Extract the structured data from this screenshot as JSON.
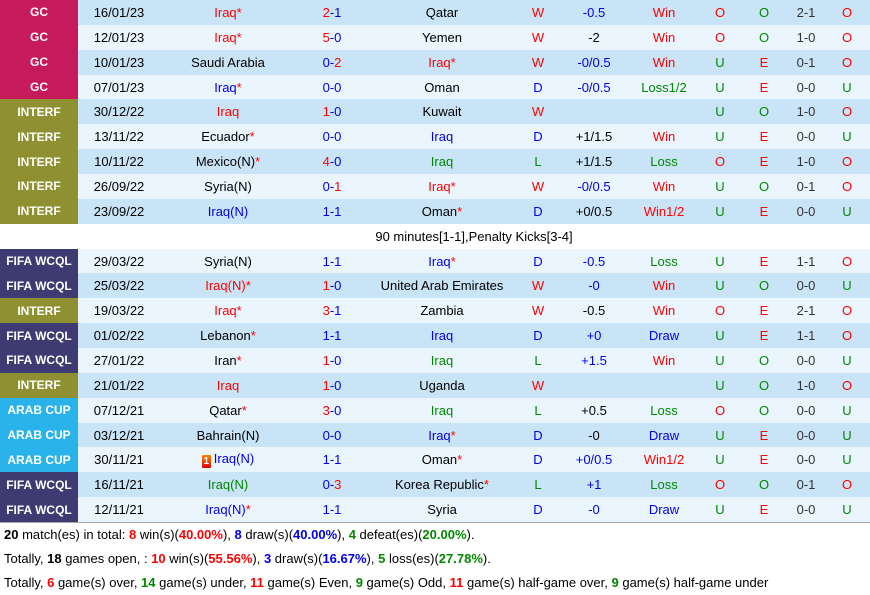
{
  "colors": {
    "red": "#ff0000",
    "blue": "#0000ee",
    "green": "#008800",
    "black": "#000000",
    "gray": "#333333"
  },
  "row_colors": {
    "dark": "#c9e4f6",
    "light": "#eaf5fd",
    "white": "#ffffff"
  },
  "badge_colors": {
    "GC": "#c51a5b",
    "INTERF": "#8f9031",
    "FIFA WCQL": "#3e3a72",
    "ARAB CUP": "#2ab3ea"
  },
  "glyphs": {
    "dash": "-",
    "star": "*",
    "red_card": "1"
  },
  "rows": [
    {
      "league": "GC",
      "date": "16/01/23",
      "home": {
        "name": "Iraq",
        "color": "red",
        "star": true
      },
      "score": {
        "h": "2",
        "hc": "red",
        "a": "1",
        "ac": "blue"
      },
      "away": {
        "name": "Qatar",
        "color": "black"
      },
      "wdl": {
        "t": "W",
        "c": "red"
      },
      "hcp": {
        "t": "-0.5",
        "c": "blue"
      },
      "bet": {
        "t": "Win",
        "c": "red"
      },
      "ou": {
        "t": "O",
        "c": "red"
      },
      "oe": {
        "t": "O",
        "c": "green"
      },
      "ht": "2-1",
      "htou": {
        "t": "O",
        "c": "red"
      },
      "shade": "dark"
    },
    {
      "league": "GC",
      "date": "12/01/23",
      "home": {
        "name": "Iraq",
        "color": "red",
        "star": true
      },
      "score": {
        "h": "5",
        "hc": "red",
        "a": "0",
        "ac": "blue"
      },
      "away": {
        "name": "Yemen",
        "color": "black"
      },
      "wdl": {
        "t": "W",
        "c": "red"
      },
      "hcp": {
        "t": "-2",
        "c": "black"
      },
      "bet": {
        "t": "Win",
        "c": "red"
      },
      "ou": {
        "t": "O",
        "c": "red"
      },
      "oe": {
        "t": "O",
        "c": "green"
      },
      "ht": "1-0",
      "htou": {
        "t": "O",
        "c": "red"
      },
      "shade": "light"
    },
    {
      "league": "GC",
      "date": "10/01/23",
      "home": {
        "name": "Saudi Arabia",
        "color": "black"
      },
      "score": {
        "h": "0",
        "hc": "blue",
        "a": "2",
        "ac": "red"
      },
      "away": {
        "name": "Iraq",
        "color": "red",
        "star": true
      },
      "wdl": {
        "t": "W",
        "c": "red"
      },
      "hcp": {
        "t": "-0/0.5",
        "c": "blue"
      },
      "bet": {
        "t": "Win",
        "c": "red"
      },
      "ou": {
        "t": "U",
        "c": "green"
      },
      "oe": {
        "t": "E",
        "c": "red"
      },
      "ht": "0-1",
      "htou": {
        "t": "O",
        "c": "red"
      },
      "shade": "dark"
    },
    {
      "league": "GC",
      "date": "07/01/23",
      "home": {
        "name": "Iraq",
        "color": "blue",
        "star": true
      },
      "score": {
        "h": "0",
        "hc": "blue",
        "a": "0",
        "ac": "blue"
      },
      "away": {
        "name": "Oman",
        "color": "black"
      },
      "wdl": {
        "t": "D",
        "c": "blue"
      },
      "hcp": {
        "t": "-0/0.5",
        "c": "blue"
      },
      "bet": {
        "t": "Loss1/2",
        "c": "green"
      },
      "ou": {
        "t": "U",
        "c": "green"
      },
      "oe": {
        "t": "E",
        "c": "red"
      },
      "ht": "0-0",
      "htou": {
        "t": "U",
        "c": "green"
      },
      "shade": "light"
    },
    {
      "league": "INTERF",
      "date": "30/12/22",
      "home": {
        "name": "Iraq",
        "color": "red"
      },
      "score": {
        "h": "1",
        "hc": "red",
        "a": "0",
        "ac": "blue"
      },
      "away": {
        "name": "Kuwait",
        "color": "black"
      },
      "wdl": {
        "t": "W",
        "c": "red"
      },
      "hcp": {
        "t": "",
        "c": "black"
      },
      "bet": {
        "t": "",
        "c": "black"
      },
      "ou": {
        "t": "U",
        "c": "green"
      },
      "oe": {
        "t": "O",
        "c": "green"
      },
      "ht": "1-0",
      "htou": {
        "t": "O",
        "c": "red"
      },
      "shade": "dark"
    },
    {
      "league": "INTERF",
      "date": "13/11/22",
      "home": {
        "name": "Ecuador",
        "color": "black",
        "star": true
      },
      "score": {
        "h": "0",
        "hc": "blue",
        "a": "0",
        "ac": "blue"
      },
      "away": {
        "name": "Iraq",
        "color": "blue"
      },
      "wdl": {
        "t": "D",
        "c": "blue"
      },
      "hcp": {
        "t": "+1/1.5",
        "c": "black"
      },
      "bet": {
        "t": "Win",
        "c": "red"
      },
      "ou": {
        "t": "U",
        "c": "green"
      },
      "oe": {
        "t": "E",
        "c": "red"
      },
      "ht": "0-0",
      "htou": {
        "t": "U",
        "c": "green"
      },
      "shade": "light"
    },
    {
      "league": "INTERF",
      "date": "10/11/22",
      "home": {
        "name": "Mexico(N)",
        "color": "black",
        "star": true
      },
      "score": {
        "h": "4",
        "hc": "red",
        "a": "0",
        "ac": "blue"
      },
      "away": {
        "name": "Iraq",
        "color": "green"
      },
      "wdl": {
        "t": "L",
        "c": "green"
      },
      "hcp": {
        "t": "+1/1.5",
        "c": "black"
      },
      "bet": {
        "t": "Loss",
        "c": "green"
      },
      "ou": {
        "t": "O",
        "c": "red"
      },
      "oe": {
        "t": "E",
        "c": "red"
      },
      "ht": "1-0",
      "htou": {
        "t": "O",
        "c": "red"
      },
      "shade": "dark"
    },
    {
      "league": "INTERF",
      "date": "26/09/22",
      "home": {
        "name": "Syria(N)",
        "color": "black"
      },
      "score": {
        "h": "0",
        "hc": "blue",
        "a": "1",
        "ac": "red"
      },
      "away": {
        "name": "Iraq",
        "color": "red",
        "star": true
      },
      "wdl": {
        "t": "W",
        "c": "red"
      },
      "hcp": {
        "t": "-0/0.5",
        "c": "blue"
      },
      "bet": {
        "t": "Win",
        "c": "red"
      },
      "ou": {
        "t": "U",
        "c": "green"
      },
      "oe": {
        "t": "O",
        "c": "green"
      },
      "ht": "0-1",
      "htou": {
        "t": "O",
        "c": "red"
      },
      "shade": "light"
    },
    {
      "league": "INTERF",
      "date": "23/09/22",
      "home": {
        "name": "Iraq(N)",
        "color": "blue"
      },
      "score": {
        "h": "1",
        "hc": "blue",
        "a": "1",
        "ac": "blue"
      },
      "away": {
        "name": "Oman",
        "color": "black",
        "star": true
      },
      "wdl": {
        "t": "D",
        "c": "blue"
      },
      "hcp": {
        "t": "+0/0.5",
        "c": "black"
      },
      "bet": {
        "t": "Win1/2",
        "c": "red"
      },
      "ou": {
        "t": "U",
        "c": "green"
      },
      "oe": {
        "t": "E",
        "c": "red"
      },
      "ht": "0-0",
      "htou": {
        "t": "U",
        "c": "green"
      },
      "shade": "dark"
    },
    {
      "type": "note",
      "text": "90 minutes[1-1],Penalty Kicks[3-4]",
      "shade": "white"
    },
    {
      "league": "FIFA WCQL",
      "date": "29/03/22",
      "home": {
        "name": "Syria(N)",
        "color": "black"
      },
      "score": {
        "h": "1",
        "hc": "blue",
        "a": "1",
        "ac": "blue"
      },
      "away": {
        "name": "Iraq",
        "color": "blue",
        "star": true
      },
      "wdl": {
        "t": "D",
        "c": "blue"
      },
      "hcp": {
        "t": "-0.5",
        "c": "blue"
      },
      "bet": {
        "t": "Loss",
        "c": "green"
      },
      "ou": {
        "t": "U",
        "c": "green"
      },
      "oe": {
        "t": "E",
        "c": "red"
      },
      "ht": "1-1",
      "htou": {
        "t": "O",
        "c": "red"
      },
      "shade": "light"
    },
    {
      "league": "FIFA WCQL",
      "date": "25/03/22",
      "home": {
        "name": "Iraq(N)",
        "color": "red",
        "star": true
      },
      "score": {
        "h": "1",
        "hc": "red",
        "a": "0",
        "ac": "blue"
      },
      "away": {
        "name": "United Arab Emirates",
        "color": "black"
      },
      "wdl": {
        "t": "W",
        "c": "red"
      },
      "hcp": {
        "t": "-0",
        "c": "blue"
      },
      "bet": {
        "t": "Win",
        "c": "red"
      },
      "ou": {
        "t": "U",
        "c": "green"
      },
      "oe": {
        "t": "O",
        "c": "green"
      },
      "ht": "0-0",
      "htou": {
        "t": "U",
        "c": "green"
      },
      "shade": "dark"
    },
    {
      "league": "INTERF",
      "date": "19/03/22",
      "home": {
        "name": "Iraq",
        "color": "red",
        "star": true
      },
      "score": {
        "h": "3",
        "hc": "red",
        "a": "1",
        "ac": "blue"
      },
      "away": {
        "name": "Zambia",
        "color": "black"
      },
      "wdl": {
        "t": "W",
        "c": "red"
      },
      "hcp": {
        "t": "-0.5",
        "c": "black"
      },
      "bet": {
        "t": "Win",
        "c": "red"
      },
      "ou": {
        "t": "O",
        "c": "red"
      },
      "oe": {
        "t": "E",
        "c": "red"
      },
      "ht": "2-1",
      "htou": {
        "t": "O",
        "c": "red"
      },
      "shade": "light"
    },
    {
      "league": "FIFA WCQL",
      "date": "01/02/22",
      "home": {
        "name": "Lebanon",
        "color": "black",
        "star": true
      },
      "score": {
        "h": "1",
        "hc": "blue",
        "a": "1",
        "ac": "blue"
      },
      "away": {
        "name": "Iraq",
        "color": "blue"
      },
      "wdl": {
        "t": "D",
        "c": "blue"
      },
      "hcp": {
        "t": "+0",
        "c": "blue"
      },
      "bet": {
        "t": "Draw",
        "c": "blue"
      },
      "ou": {
        "t": "U",
        "c": "green"
      },
      "oe": {
        "t": "E",
        "c": "red"
      },
      "ht": "1-1",
      "htou": {
        "t": "O",
        "c": "red"
      },
      "shade": "dark"
    },
    {
      "league": "FIFA WCQL",
      "date": "27/01/22",
      "home": {
        "name": "Iran",
        "color": "black",
        "star": true
      },
      "score": {
        "h": "1",
        "hc": "red",
        "a": "0",
        "ac": "blue"
      },
      "away": {
        "name": "Iraq",
        "color": "green"
      },
      "wdl": {
        "t": "L",
        "c": "green"
      },
      "hcp": {
        "t": "+1.5",
        "c": "blue"
      },
      "bet": {
        "t": "Win",
        "c": "red"
      },
      "ou": {
        "t": "U",
        "c": "green"
      },
      "oe": {
        "t": "O",
        "c": "green"
      },
      "ht": "0-0",
      "htou": {
        "t": "U",
        "c": "green"
      },
      "shade": "light"
    },
    {
      "league": "INTERF",
      "date": "21/01/22",
      "home": {
        "name": "Iraq",
        "color": "red"
      },
      "score": {
        "h": "1",
        "hc": "red",
        "a": "0",
        "ac": "blue"
      },
      "away": {
        "name": "Uganda",
        "color": "black"
      },
      "wdl": {
        "t": "W",
        "c": "red"
      },
      "hcp": {
        "t": "",
        "c": "black"
      },
      "bet": {
        "t": "",
        "c": "black"
      },
      "ou": {
        "t": "U",
        "c": "green"
      },
      "oe": {
        "t": "O",
        "c": "green"
      },
      "ht": "1-0",
      "htou": {
        "t": "O",
        "c": "red"
      },
      "shade": "dark"
    },
    {
      "league": "ARAB CUP",
      "date": "07/12/21",
      "home": {
        "name": "Qatar",
        "color": "black",
        "star": true
      },
      "score": {
        "h": "3",
        "hc": "red",
        "a": "0",
        "ac": "blue"
      },
      "away": {
        "name": "Iraq",
        "color": "green"
      },
      "wdl": {
        "t": "L",
        "c": "green"
      },
      "hcp": {
        "t": "+0.5",
        "c": "black"
      },
      "bet": {
        "t": "Loss",
        "c": "green"
      },
      "ou": {
        "t": "O",
        "c": "red"
      },
      "oe": {
        "t": "O",
        "c": "green"
      },
      "ht": "0-0",
      "htou": {
        "t": "U",
        "c": "green"
      },
      "shade": "light"
    },
    {
      "league": "ARAB CUP",
      "date": "03/12/21",
      "home": {
        "name": "Bahrain(N)",
        "color": "black"
      },
      "score": {
        "h": "0",
        "hc": "blue",
        "a": "0",
        "ac": "blue"
      },
      "away": {
        "name": "Iraq",
        "color": "blue",
        "star": true
      },
      "wdl": {
        "t": "D",
        "c": "blue"
      },
      "hcp": {
        "t": "-0",
        "c": "black"
      },
      "bet": {
        "t": "Draw",
        "c": "blue"
      },
      "ou": {
        "t": "U",
        "c": "green"
      },
      "oe": {
        "t": "E",
        "c": "red"
      },
      "ht": "0-0",
      "htou": {
        "t": "U",
        "c": "green"
      },
      "shade": "dark"
    },
    {
      "league": "ARAB CUP",
      "date": "30/11/21",
      "home": {
        "name": "Iraq(N)",
        "color": "blue",
        "card": true
      },
      "score": {
        "h": "1",
        "hc": "blue",
        "a": "1",
        "ac": "blue"
      },
      "away": {
        "name": "Oman",
        "color": "black",
        "star": true
      },
      "wdl": {
        "t": "D",
        "c": "blue"
      },
      "hcp": {
        "t": "+0/0.5",
        "c": "blue"
      },
      "bet": {
        "t": "Win1/2",
        "c": "red"
      },
      "ou": {
        "t": "U",
        "c": "green"
      },
      "oe": {
        "t": "E",
        "c": "red"
      },
      "ht": "0-0",
      "htou": {
        "t": "U",
        "c": "green"
      },
      "shade": "light"
    },
    {
      "league": "FIFA WCQL",
      "date": "16/11/21",
      "home": {
        "name": "Iraq(N)",
        "color": "green"
      },
      "score": {
        "h": "0",
        "hc": "blue",
        "a": "3",
        "ac": "red"
      },
      "away": {
        "name": "Korea Republic",
        "color": "black",
        "star": true
      },
      "wdl": {
        "t": "L",
        "c": "green"
      },
      "hcp": {
        "t": "+1",
        "c": "blue"
      },
      "bet": {
        "t": "Loss",
        "c": "green"
      },
      "ou": {
        "t": "O",
        "c": "red"
      },
      "oe": {
        "t": "O",
        "c": "green"
      },
      "ht": "0-1",
      "htou": {
        "t": "O",
        "c": "red"
      },
      "shade": "dark"
    },
    {
      "league": "FIFA WCQL",
      "date": "12/11/21",
      "home": {
        "name": "Iraq(N)",
        "color": "blue",
        "star": true
      },
      "score": {
        "h": "1",
        "hc": "blue",
        "a": "1",
        "ac": "blue"
      },
      "away": {
        "name": "Syria",
        "color": "black"
      },
      "wdl": {
        "t": "D",
        "c": "blue"
      },
      "hcp": {
        "t": "-0",
        "c": "blue"
      },
      "bet": {
        "t": "Draw",
        "c": "blue"
      },
      "ou": {
        "t": "U",
        "c": "green"
      },
      "oe": {
        "t": "E",
        "c": "red"
      },
      "ht": "0-0",
      "htou": {
        "t": "U",
        "c": "green"
      },
      "shade": "light"
    }
  ],
  "summary": {
    "lines": [
      [
        {
          "t": "20",
          "b": 1,
          "c": "black"
        },
        {
          "t": " match(es) in total: "
        },
        {
          "t": "8",
          "b": 1,
          "c": "red"
        },
        {
          "t": " win(s)("
        },
        {
          "t": "40.00%",
          "b": 1,
          "c": "red"
        },
        {
          "t": "), "
        },
        {
          "t": "8",
          "b": 1,
          "c": "blue"
        },
        {
          "t": " draw(s)("
        },
        {
          "t": "40.00%",
          "b": 1,
          "c": "blue"
        },
        {
          "t": "), "
        },
        {
          "t": "4",
          "b": 1,
          "c": "green"
        },
        {
          "t": " defeat(es)("
        },
        {
          "t": "20.00%",
          "b": 1,
          "c": "green"
        },
        {
          "t": ")."
        }
      ],
      [
        {
          "t": "Totally, "
        },
        {
          "t": "18",
          "b": 1,
          "c": "black"
        },
        {
          "t": " games open, : "
        },
        {
          "t": "10",
          "b": 1,
          "c": "red"
        },
        {
          "t": " win(s)("
        },
        {
          "t": "55.56%",
          "b": 1,
          "c": "red"
        },
        {
          "t": "), "
        },
        {
          "t": "3",
          "b": 1,
          "c": "blue"
        },
        {
          "t": " draw(s)("
        },
        {
          "t": "16.67%",
          "b": 1,
          "c": "blue"
        },
        {
          "t": "), "
        },
        {
          "t": "5",
          "b": 1,
          "c": "green"
        },
        {
          "t": " loss(es)("
        },
        {
          "t": "27.78%",
          "b": 1,
          "c": "green"
        },
        {
          "t": ")."
        }
      ],
      [
        {
          "t": "Totally, "
        },
        {
          "t": "6",
          "b": 1,
          "c": "red"
        },
        {
          "t": " game(s) over, "
        },
        {
          "t": "14",
          "b": 1,
          "c": "green"
        },
        {
          "t": " game(s) under, "
        },
        {
          "t": "11",
          "b": 1,
          "c": "red"
        },
        {
          "t": " game(s) Even, "
        },
        {
          "t": "9",
          "b": 1,
          "c": "green"
        },
        {
          "t": " game(s) Odd, "
        },
        {
          "t": "11",
          "b": 1,
          "c": "red"
        },
        {
          "t": " game(s) half-game over, "
        },
        {
          "t": "9",
          "b": 1,
          "c": "green"
        },
        {
          "t": " game(s) half-game under"
        }
      ]
    ]
  }
}
